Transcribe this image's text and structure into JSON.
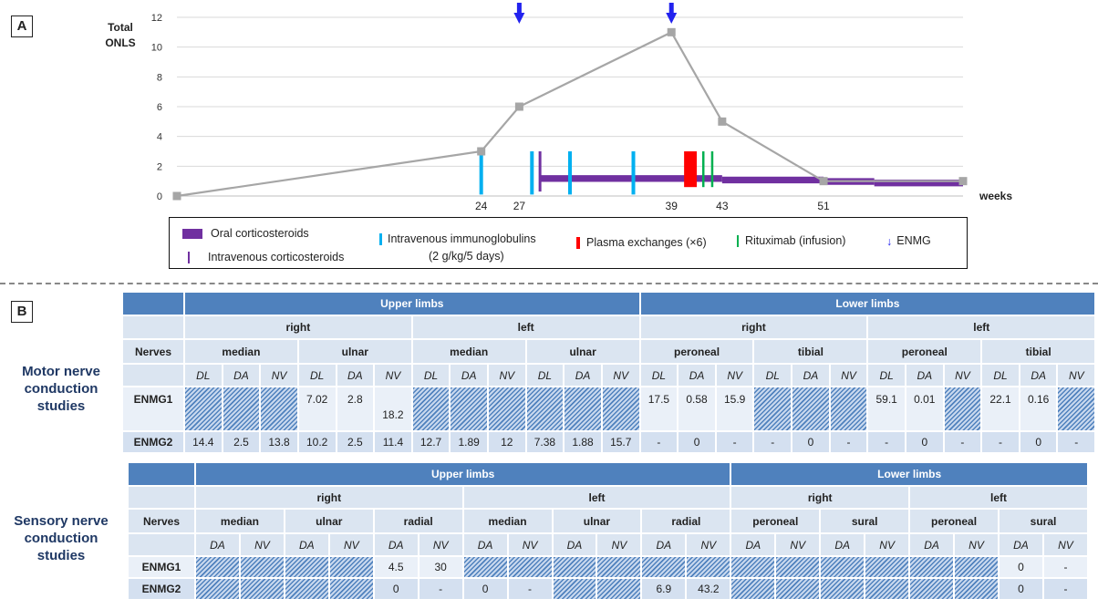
{
  "panel_a": {
    "label": "A"
  },
  "panel_b": {
    "label": "B"
  },
  "chart_data": {
    "type": "line",
    "ylabel": [
      "Total",
      "ONLS"
    ],
    "xlabel": "weeks",
    "ylim": [
      0,
      12
    ],
    "yticks": [
      0,
      2,
      4,
      6,
      8,
      10,
      12
    ],
    "xlim": [
      0,
      62
    ],
    "xtick_labels": [
      24,
      27,
      39,
      43,
      51
    ],
    "grid": "horizontal",
    "series": [
      {
        "x": [
          0,
          24,
          27,
          39,
          43,
          51,
          62
        ],
        "y": [
          0,
          3,
          6,
          11,
          5,
          1,
          1
        ]
      }
    ],
    "enmg_arrows_x": [
      27,
      39
    ],
    "ivig_weeks": [
      24,
      28,
      31,
      36
    ],
    "iv_corticosteroid_week": 28.6,
    "plasma_exchange_weeks": [
      40,
      41
    ],
    "rituximab_weeks": [
      41.5,
      42.2
    ],
    "oral_corticosteroids": [
      {
        "from": 28.6,
        "to": 43,
        "level": 1.4
      },
      {
        "from": 43,
        "to": 51,
        "level": 1.3
      },
      {
        "from": 51,
        "to": 55,
        "level": 1.2
      },
      {
        "from": 55,
        "to": 62,
        "level": 1.1
      }
    ],
    "colors": {
      "line": "#a6a6a6",
      "oral": "#7030a0",
      "ivig": "#00b0f0",
      "plex": "#ff0000",
      "rituximab": "#00b050",
      "arrow": "#2222ee"
    }
  },
  "legend": {
    "oral": "Oral corticosteroids",
    "iv_cortico": "Intravenous corticosteroids",
    "ivig_line1": "Intravenous immunoglobulins",
    "ivig_line2": "(2 g/kg/5 days)",
    "plex": "Plasma exchanges (×6)",
    "rituximab": "Rituximab (infusion)",
    "enmg": "ENMG"
  },
  "motor": {
    "side_label": [
      "Motor nerve",
      "conduction",
      "studies"
    ],
    "limbs": [
      "Upper limbs",
      "Lower limbs"
    ],
    "sides": [
      "right",
      "left",
      "right",
      "left"
    ],
    "nerves_header": "Nerves",
    "nerves": [
      "median",
      "ulnar",
      "median",
      "ulnar",
      "peroneal",
      "tibial",
      "peroneal",
      "tibial"
    ],
    "params": [
      "DL",
      "DA",
      "NV"
    ],
    "rows": [
      {
        "label": "ENMG1",
        "cells": [
          null,
          null,
          null,
          "7.02",
          "2.8",
          "18.2",
          null,
          null,
          null,
          null,
          null,
          null,
          "17.5",
          "0.58",
          "15.9",
          null,
          null,
          null,
          "59.1",
          "0.01",
          null,
          "22.1",
          "0.16",
          null
        ]
      },
      {
        "label": "ENMG2",
        "cells": [
          "14.4",
          "2.5",
          "13.8",
          "10.2",
          "2.5",
          "11.4",
          "12.7",
          "1.89",
          "12",
          "7.38",
          "1.88",
          "15.7",
          "-",
          "0",
          "-",
          "-",
          "0",
          "-",
          "-",
          "0",
          "-",
          "-",
          "0",
          "-"
        ]
      }
    ]
  },
  "sensory": {
    "side_label": [
      "Sensory nerve",
      "conduction",
      "studies"
    ],
    "limbs": [
      "Upper limbs",
      "Lower limbs"
    ],
    "sides": [
      "right",
      "left",
      "right",
      "left"
    ],
    "nerves_header": "Nerves",
    "nerves": [
      "median",
      "ulnar",
      "radial",
      "median",
      "ulnar",
      "radial",
      "peroneal",
      "sural",
      "peroneal",
      "sural"
    ],
    "params": [
      "DA",
      "NV"
    ],
    "rows": [
      {
        "label": "ENMG1",
        "cells": [
          null,
          null,
          null,
          null,
          "4.5",
          "30",
          null,
          null,
          null,
          null,
          null,
          null,
          null,
          null,
          null,
          null,
          null,
          null,
          "0",
          "-"
        ]
      },
      {
        "label": "ENMG2",
        "cells": [
          null,
          null,
          null,
          null,
          "0",
          "-",
          "0",
          "-",
          null,
          null,
          "6.9",
          "43.2",
          null,
          null,
          null,
          null,
          null,
          null,
          "0",
          "-"
        ]
      }
    ]
  }
}
